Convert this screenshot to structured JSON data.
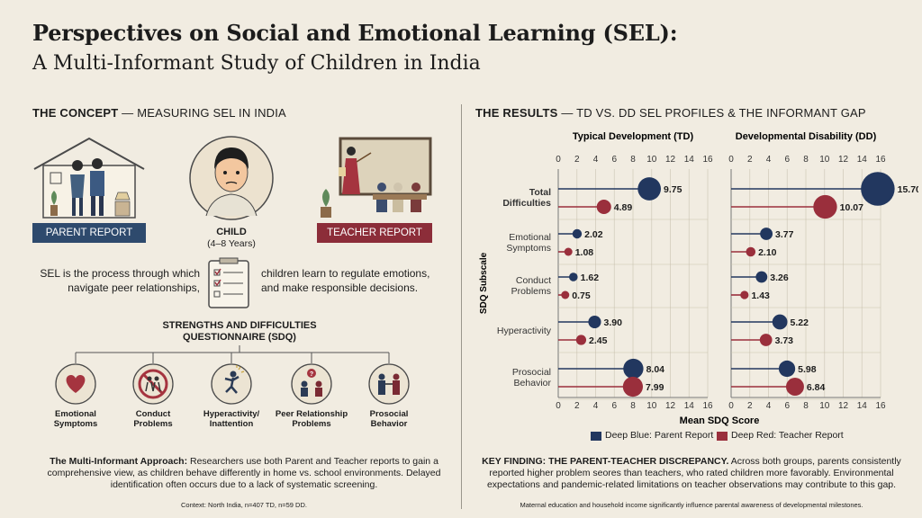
{
  "title": {
    "line1": "Perspectives on Social and Emotional Learning (SEL):",
    "line2": "A Multi-Informant Study of Children in India"
  },
  "concept": {
    "heading_bold": "THE CONCEPT",
    "heading_rest": " — MEASURING SEL IN INDIA",
    "parent_label": "PARENT REPORT",
    "teacher_label": "TEACHER REPORT",
    "child_label": "CHILD",
    "child_age": "(4–8 Years)",
    "sel_left": "SEL is the process through which navigate peer relationships,",
    "sel_right": "children learn to regulate emotions, and make responsible decisions.",
    "sdq_title": "STRENGTHS AND DIFFICULTIES QUESTIONNAIRE (SDQ)",
    "subscales": [
      {
        "label": "Emotional Symptoms",
        "icon": "heart-icon"
      },
      {
        "label": "Conduct Problems",
        "icon": "prohibited-conflict-icon"
      },
      {
        "label": "Hyperactivity/ Inattention",
        "icon": "jumping-child-icon"
      },
      {
        "label": "Peer Relationship Problems",
        "icon": "peers-question-icon"
      },
      {
        "label": "Prosocial Behavior",
        "icon": "helping-hands-icon"
      }
    ],
    "approach_bold": "The Multi-Informant Approach:",
    "approach_text": " Researchers use both Parent and Teacher reports to gain a comprehensive view, as children behave differently in home vs. school environments. Delayed identification often occurs due to a lack of systematic screening.",
    "context": "Context: North India, n=407 TD, n=59 DD."
  },
  "results": {
    "heading_bold": "THE RESULTS",
    "heading_rest": " — TD VS. DD SEL PROFILES & THE INFORMANT GAP",
    "y_axis_label": "SDQ Subscale",
    "x_axis_label": "Mean SDQ Score",
    "legend_parent": "Deep Blue: Parent Report",
    "legend_teacher": "Deep Red: Teacher Report",
    "finding_bold": "KEY FINDING: THE PARENT-TEACHER DISCREPANCY.",
    "finding_text": " Across both groups, parents consistently reported higher problem seores than teachers, who rated children more favorably. Environmental expectations and pandemic-related limitations on teacher observations may contribute to this gap.",
    "footnote": "Maternal education and household income significantly influence parental awareness of developmental milestones."
  },
  "colors": {
    "parent": "#22375f",
    "teacher": "#9a2f3c",
    "background": "#f1ece1"
  },
  "chart_data": [
    {
      "type": "scatter",
      "title": "Typical Development (TD)",
      "categories": [
        "Total Difficulties",
        "Emotional Symptoms",
        "Conduct Problems",
        "Hyperactivity",
        "Prosocial Behavior"
      ],
      "xlim": [
        0,
        16
      ],
      "xticks": [
        0,
        2,
        4,
        6,
        8,
        10,
        12,
        14,
        16
      ],
      "xlabel": "Mean SDQ Score",
      "ylabel": "SDQ Subscale",
      "series": [
        {
          "name": "Parent Report",
          "values": [
            9.75,
            2.02,
            1.62,
            3.9,
            8.04
          ]
        },
        {
          "name": "Teacher Report",
          "values": [
            4.89,
            1.08,
            0.75,
            2.45,
            7.99
          ]
        }
      ]
    },
    {
      "type": "scatter",
      "title": "Developmental Disability (DD)",
      "categories": [
        "Total Difficulties",
        "Emotional Symptoms",
        "Conduct Problems",
        "Hyperactivity",
        "Prosocial Behavior"
      ],
      "xlim": [
        0,
        16
      ],
      "xticks": [
        0,
        2,
        4,
        6,
        8,
        10,
        12,
        14,
        16
      ],
      "xlabel": "Mean SDQ Score",
      "ylabel": "SDQ Subscale",
      "series": [
        {
          "name": "Parent Report",
          "values": [
            15.7,
            3.77,
            3.26,
            5.22,
            5.98
          ]
        },
        {
          "name": "Teacher Report",
          "values": [
            10.07,
            2.1,
            1.43,
            3.73,
            6.84
          ]
        }
      ]
    }
  ]
}
